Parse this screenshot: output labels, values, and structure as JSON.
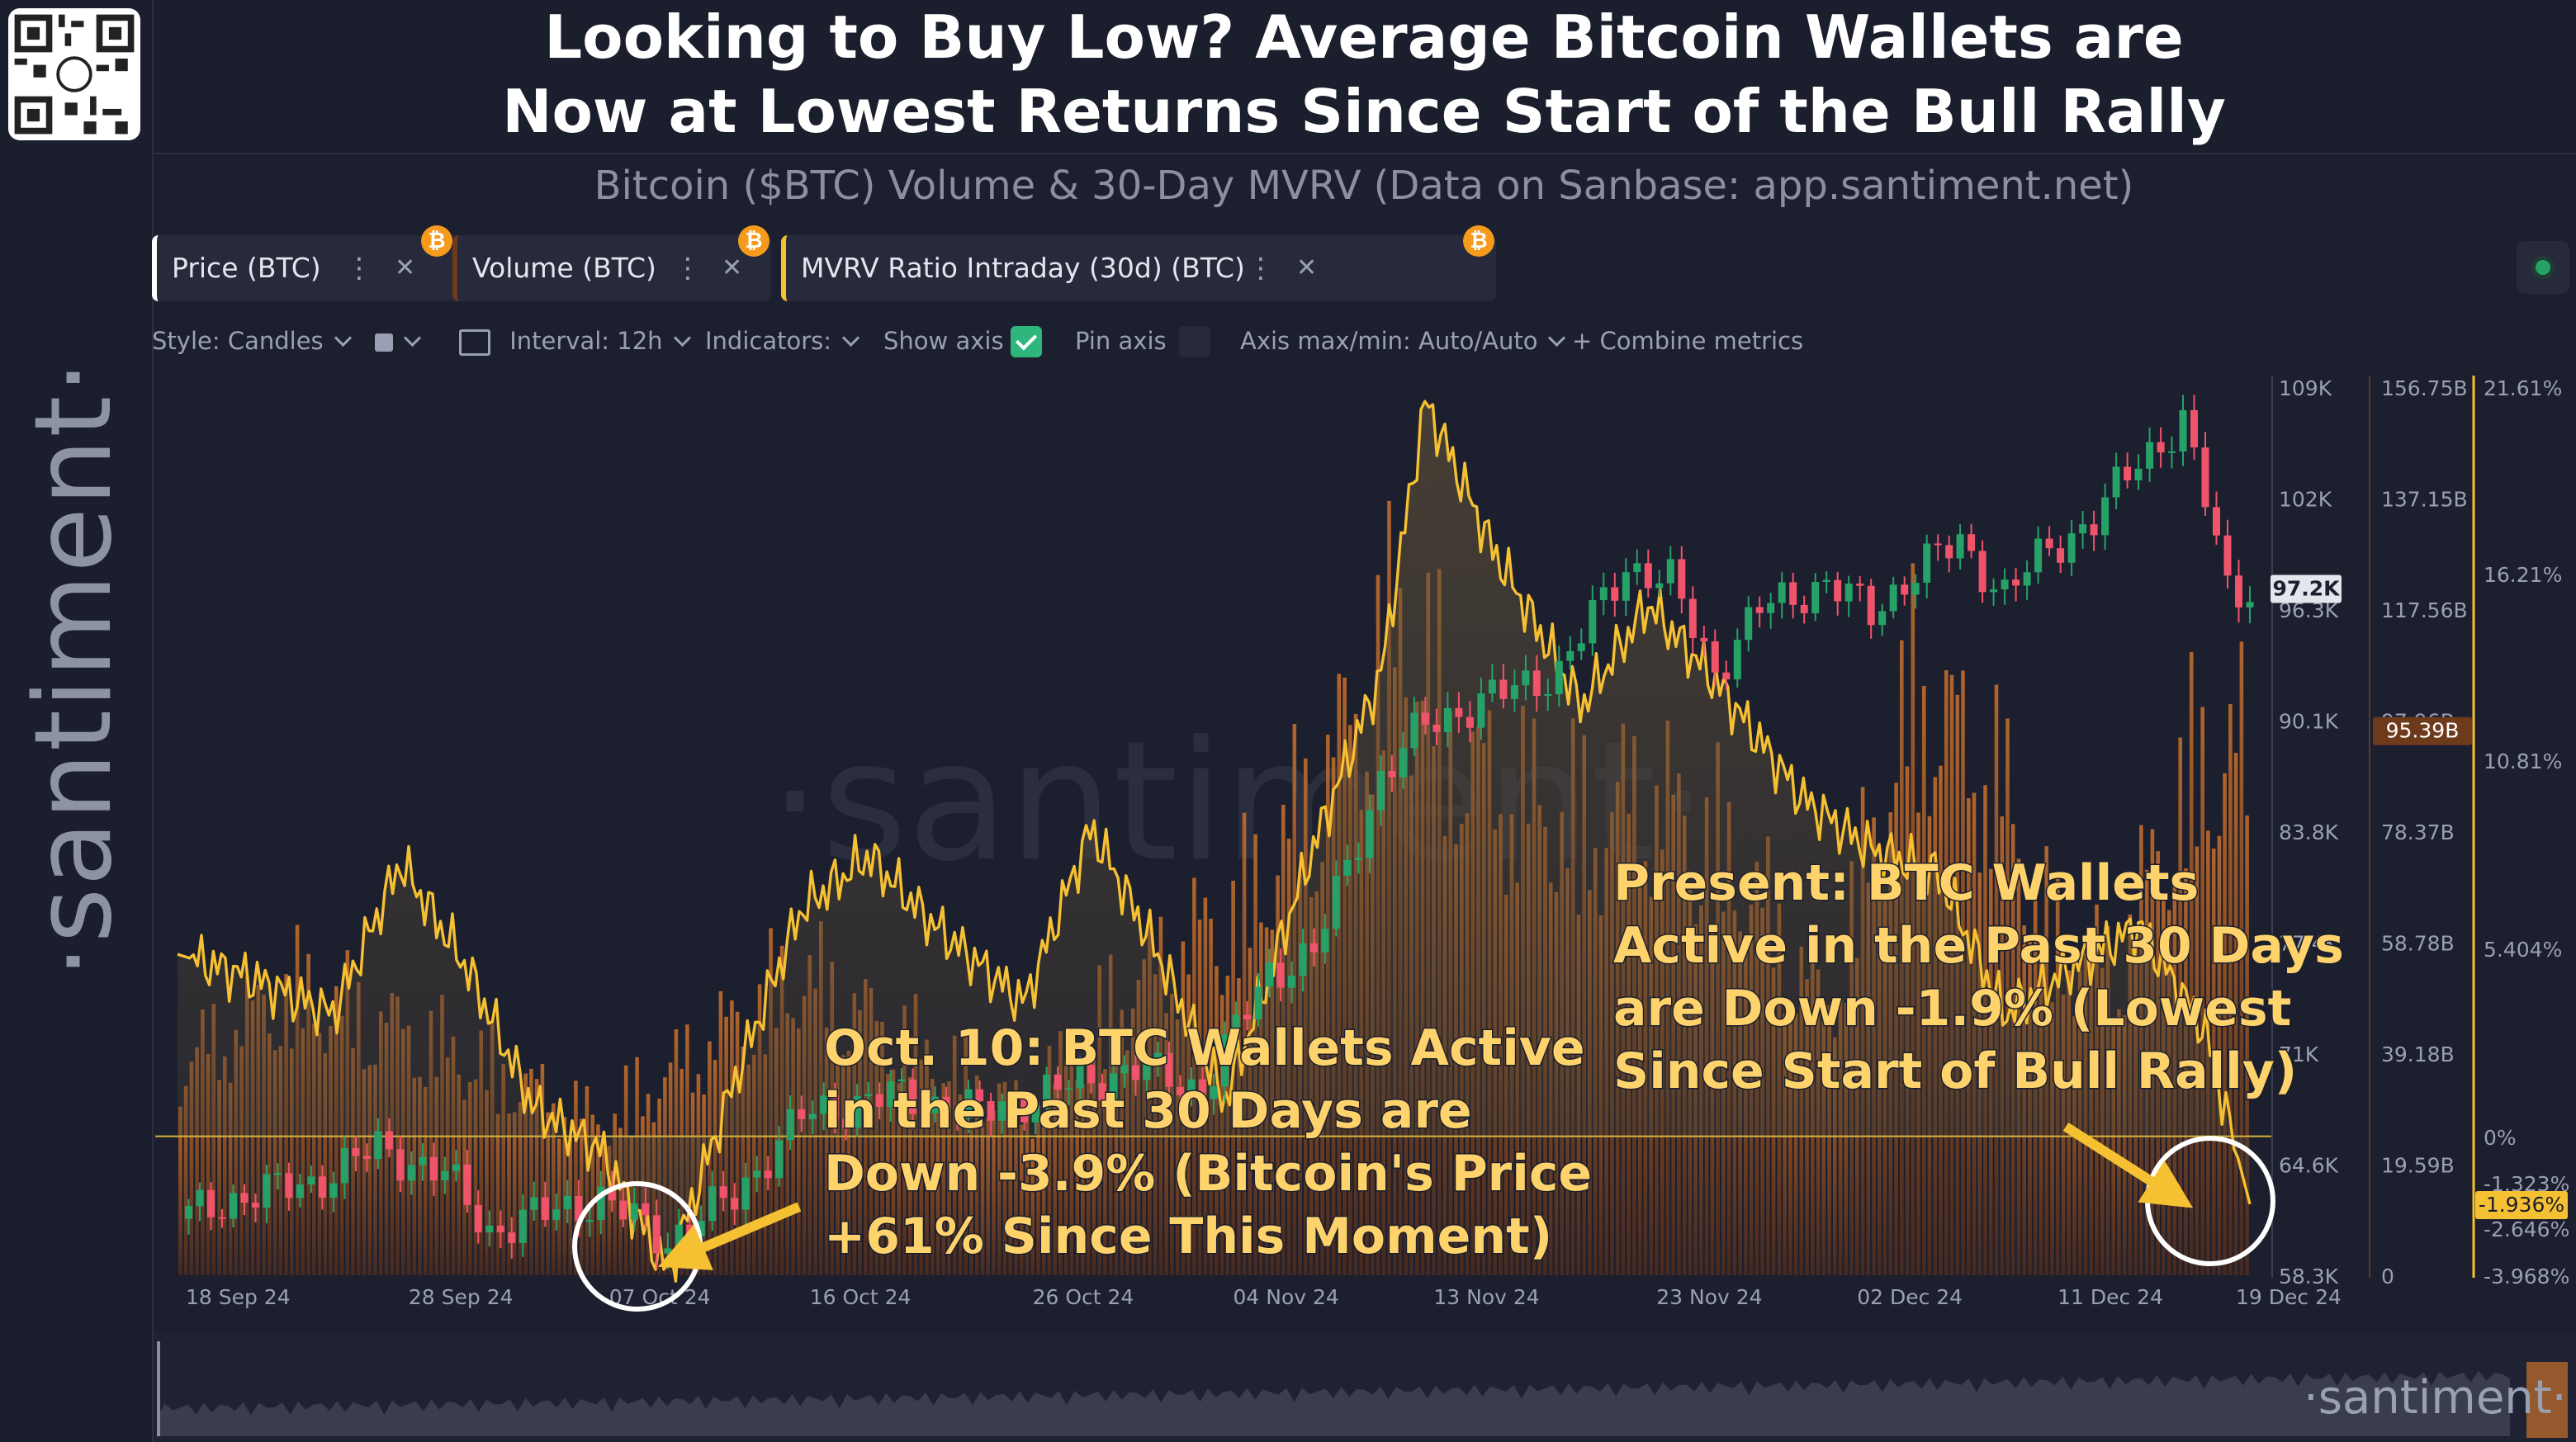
{
  "header": {
    "title_line1": "Looking to Buy Low? Average Bitcoin Wallets are",
    "title_line2": "Now at Lowest Returns Since Start of the Bull Rally",
    "subtitle": "Bitcoin ($BTC) Volume & 30-Day MVRV (Data on Sanbase: app.santiment.net)"
  },
  "brand": {
    "side_logo": "·santiment·",
    "corner_logo": "·santiment·"
  },
  "metric_tabs": [
    {
      "label": "Price (BTC)",
      "color": "#ffffff"
    },
    {
      "label": "Volume (BTC)",
      "color": "#6e3a1c"
    },
    {
      "label": "MVRV Ratio Intraday (30d) (BTC)",
      "color": "#f6c033"
    }
  ],
  "toolbar": {
    "style": "Style: Candles",
    "interval": "Interval: 12h",
    "indicators": "Indicators:",
    "show_axis": "Show axis",
    "pin_axis": "Pin axis",
    "axis_minmax": "Axis max/min: Auto/Auto",
    "combine": "+ Combine metrics"
  },
  "icons": {
    "qr": "qr-code-icon",
    "bitcoin_badge": "bitcoin-icon",
    "more": "more-vertical-icon",
    "close": "close-icon",
    "chevron": "chevron-down-icon",
    "settings": "status-dot-icon"
  },
  "colors": {
    "bg": "#1c1f2e",
    "up": "#26a269",
    "down": "#f0546a",
    "mvrv": "#f6c033",
    "volume": "#b0642a",
    "zero_line": "#d8b43c"
  },
  "chart_data": {
    "type": "line",
    "x_ticks": [
      "18 Sep 24",
      "28 Sep 24",
      "07 Oct 24",
      "16 Oct 24",
      "26 Oct 24",
      "04 Nov 24",
      "13 Nov 24",
      "23 Nov 24",
      "02 Dec 24",
      "11 Dec 24",
      "19 Dec 24"
    ],
    "price_axis": {
      "ticks": [
        "109K",
        "102K",
        "96.3K",
        "90.1K",
        "83.8K",
        "77.4K",
        "71K",
        "64.6K",
        "58.3K"
      ],
      "range": [
        58300,
        109000
      ],
      "current": "97.2K"
    },
    "volume_axis": {
      "ticks": [
        "156.75B",
        "137.15B",
        "117.56B",
        "97.96B",
        "78.37B",
        "58.78B",
        "39.18B",
        "19.59B",
        "0"
      ],
      "range": [
        0,
        156.75
      ],
      "current": "95.39B"
    },
    "mvrv_axis": {
      "ticks": [
        "21.61%",
        "16.21%",
        "10.81%",
        "5.404%",
        "0%",
        "-1.323%",
        "-2.646%",
        "-3.968%"
      ],
      "range": [
        -3.968,
        21.61
      ],
      "current": "-1.936%"
    },
    "series": [
      {
        "name": "Price (BTC)",
        "kind": "candles-close",
        "x": [
          "2024-09-18",
          "2024-09-21",
          "2024-09-24",
          "2024-09-27",
          "2024-09-30",
          "2024-10-02",
          "2024-10-05",
          "2024-10-07",
          "2024-10-10",
          "2024-10-13",
          "2024-10-16",
          "2024-10-20",
          "2024-10-24",
          "2024-10-28",
          "2024-10-31",
          "2024-11-03",
          "2024-11-06",
          "2024-11-08",
          "2024-11-11",
          "2024-11-13",
          "2024-11-16",
          "2024-11-19",
          "2024-11-22",
          "2024-11-24",
          "2024-11-26",
          "2024-11-28",
          "2024-12-01",
          "2024-12-03",
          "2024-12-05",
          "2024-12-07",
          "2024-12-09",
          "2024-12-11",
          "2024-12-13",
          "2024-12-15",
          "2024-12-17",
          "2024-12-18",
          "2024-12-19",
          "2024-12-20"
        ],
        "values": [
          61500,
          62800,
          63500,
          65500,
          64000,
          60800,
          62000,
          62600,
          60300,
          62800,
          67300,
          68500,
          67500,
          69000,
          70000,
          68800,
          75500,
          76500,
          86500,
          89500,
          91000,
          92500,
          98500,
          97500,
          92500,
          96000,
          97500,
          95800,
          98200,
          99800,
          96800,
          99500,
          101000,
          104500,
          106500,
          102200,
          97300,
          97200
        ]
      },
      {
        "name": "Volume (BTC)",
        "unit": "B",
        "x": [
          "2024-09-18",
          "2024-09-23",
          "2024-09-28",
          "2024-10-03",
          "2024-10-07",
          "2024-10-11",
          "2024-10-16",
          "2024-10-21",
          "2024-10-26",
          "2024-10-31",
          "2024-11-05",
          "2024-11-09",
          "2024-11-12",
          "2024-11-15",
          "2024-11-20",
          "2024-11-23",
          "2024-11-27",
          "2024-12-01",
          "2024-12-05",
          "2024-12-09",
          "2024-12-11",
          "2024-12-14",
          "2024-12-17",
          "2024-12-19",
          "2024-12-20"
        ],
        "values": [
          38,
          52,
          45,
          36,
          28,
          40,
          55,
          42,
          30,
          54,
          68,
          95,
          120,
          92,
          82,
          88,
          75,
          48,
          108,
          88,
          62,
          56,
          90,
          95,
          95.39
        ]
      },
      {
        "name": "MVRV Ratio Intraday (30d) (BTC)",
        "unit": "%",
        "x": [
          "2024-09-18",
          "2024-09-21",
          "2024-09-25",
          "2024-09-28",
          "2024-10-01",
          "2024-10-04",
          "2024-10-07",
          "2024-10-10",
          "2024-10-13",
          "2024-10-16",
          "2024-10-19",
          "2024-10-22",
          "2024-10-26",
          "2024-10-29",
          "2024-11-01",
          "2024-11-04",
          "2024-11-08",
          "2024-11-11",
          "2024-11-13",
          "2024-11-16",
          "2024-11-20",
          "2024-11-23",
          "2024-11-26",
          "2024-11-30",
          "2024-12-03",
          "2024-12-06",
          "2024-12-09",
          "2024-12-12",
          "2024-12-15",
          "2024-12-18",
          "2024-12-20"
        ],
        "values": [
          5.2,
          4.6,
          3.5,
          7.8,
          4.8,
          0.8,
          -0.4,
          -3.9,
          1.6,
          6.5,
          8.0,
          6.0,
          3.8,
          8.8,
          5.2,
          1.0,
          8.3,
          13.2,
          21.0,
          16.8,
          12.3,
          15.2,
          13.0,
          9.6,
          8.2,
          7.5,
          3.5,
          4.8,
          6.0,
          3.0,
          -1.936
        ]
      }
    ],
    "annotations": [
      {
        "text": [
          "Oct. 10: BTC Wallets Active",
          "in the Past 30 Days are",
          "Down -3.9% (Bitcoin's Price",
          "+61% Since This Moment)"
        ]
      },
      {
        "text": [
          "Present: BTC Wallets",
          "Active in the Past 30 Days",
          "are Down -1.9% (Lowest",
          "Since Start of Bull Rally)"
        ]
      }
    ]
  }
}
